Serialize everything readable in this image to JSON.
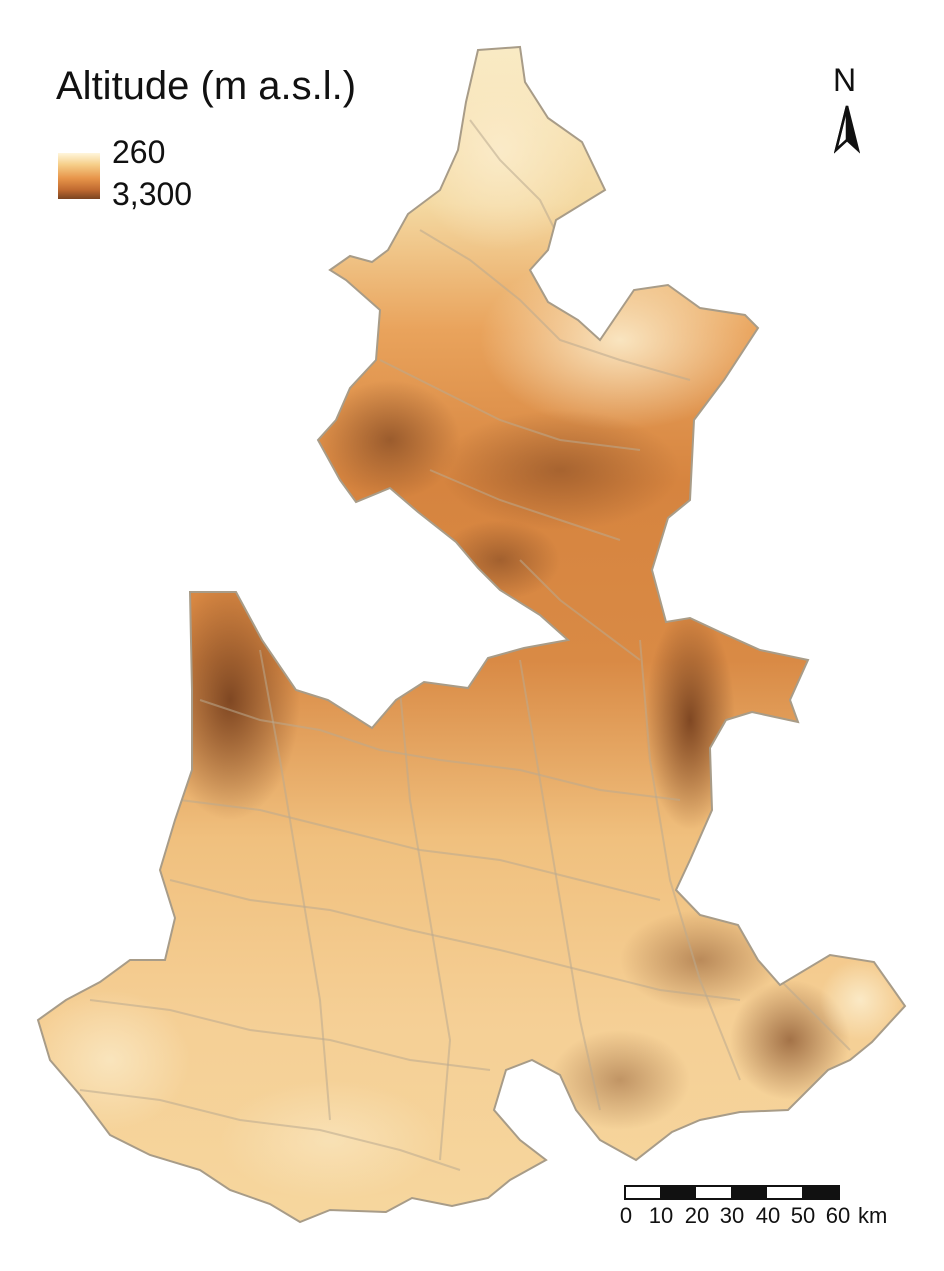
{
  "legend": {
    "title": "Altitude (m a.s.l.)",
    "min_label": "260",
    "max_label": "3,300",
    "color_low": "#fff6dc",
    "color_high": "#7a4320"
  },
  "north": {
    "letter": "N"
  },
  "scale": {
    "ticks": [
      "0",
      "10",
      "20",
      "30",
      "40",
      "50",
      "60"
    ],
    "unit": "km"
  },
  "map": {
    "colors": {
      "lowland": "#fbf0cf",
      "mid": "#e9a35c",
      "upland": "#cf7a3b",
      "peak": "#7a4320",
      "border": "#b8a890"
    }
  }
}
